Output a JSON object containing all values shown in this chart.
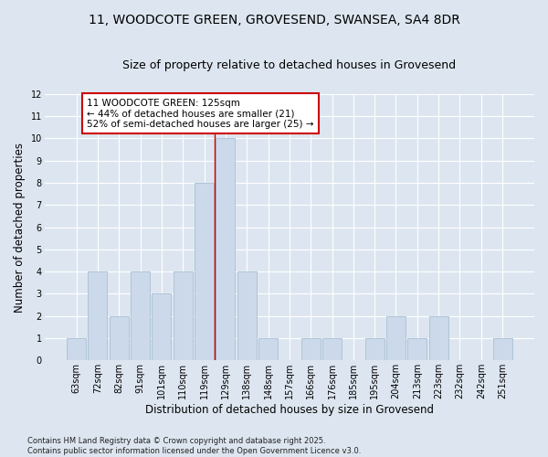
{
  "title_line1": "11, WOODCOTE GREEN, GROVESEND, SWANSEA, SA4 8DR",
  "title_line2": "Size of property relative to detached houses in Grovesend",
  "xlabel": "Distribution of detached houses by size in Grovesend",
  "ylabel": "Number of detached properties",
  "categories": [
    "63sqm",
    "72sqm",
    "82sqm",
    "91sqm",
    "101sqm",
    "110sqm",
    "119sqm",
    "129sqm",
    "138sqm",
    "148sqm",
    "157sqm",
    "166sqm",
    "176sqm",
    "185sqm",
    "195sqm",
    "204sqm",
    "213sqm",
    "223sqm",
    "232sqm",
    "242sqm",
    "251sqm"
  ],
  "values": [
    1,
    4,
    2,
    4,
    3,
    4,
    8,
    10,
    4,
    1,
    0,
    1,
    1,
    0,
    1,
    2,
    1,
    2,
    0,
    0,
    1
  ],
  "bar_color": "#ccd9ea",
  "bar_edge_color": "#a8bfd4",
  "vline_index": 7,
  "vline_color": "#cc0000",
  "annotation_text": "11 WOODCOTE GREEN: 125sqm\n← 44% of detached houses are smaller (21)\n52% of semi-detached houses are larger (25) →",
  "annotation_box_color": "white",
  "annotation_box_edge": "#cc0000",
  "ylim": [
    0,
    12
  ],
  "yticks": [
    0,
    1,
    2,
    3,
    4,
    5,
    6,
    7,
    8,
    9,
    10,
    11,
    12
  ],
  "background_color": "#dde6f0",
  "plot_bg_color": "#dde6f0",
  "footer_line1": "Contains HM Land Registry data © Crown copyright and database right 2025.",
  "footer_line2": "Contains public sector information licensed under the Open Government Licence v3.0.",
  "title_fontsize": 10,
  "subtitle_fontsize": 9,
  "tick_fontsize": 7,
  "axis_label_fontsize": 8.5,
  "annot_fontsize": 7.5,
  "footer_fontsize": 6
}
